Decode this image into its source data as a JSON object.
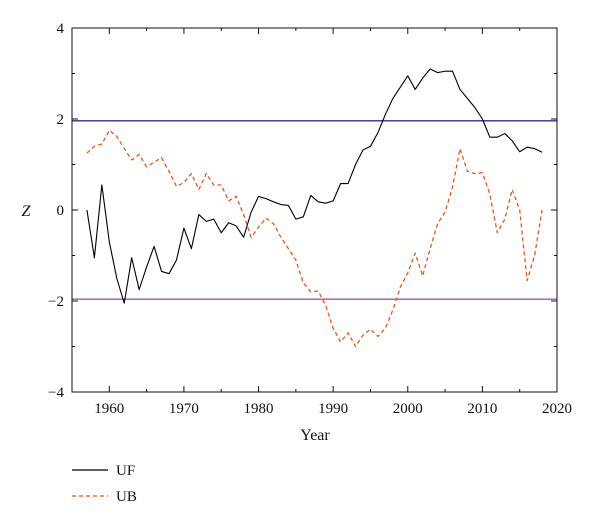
{
  "chart_data": {
    "type": "line",
    "xlabel": "Year",
    "ylabel": "Z",
    "xlim": [
      1955,
      2020
    ],
    "ylim": [
      -4,
      4
    ],
    "xticks": [
      1960,
      1970,
      1980,
      1990,
      2000,
      2010,
      2020
    ],
    "yticks": [
      -4,
      -2,
      0,
      2,
      4
    ],
    "grid": false,
    "legend_position": "below-left",
    "reference_lines": [
      {
        "y": 1.96,
        "color": "#2d2d86"
      },
      {
        "y": -1.96,
        "color": "#9b59b6"
      }
    ],
    "series": [
      {
        "name": "UF",
        "color": "#000000",
        "style": "solid",
        "x": [
          1957,
          1958,
          1959,
          1960,
          1961,
          1962,
          1963,
          1964,
          1965,
          1966,
          1967,
          1968,
          1969,
          1970,
          1971,
          1972,
          1973,
          1974,
          1975,
          1976,
          1977,
          1978,
          1979,
          1980,
          1981,
          1982,
          1983,
          1984,
          1985,
          1986,
          1987,
          1988,
          1989,
          1990,
          1991,
          1992,
          1993,
          1994,
          1995,
          1996,
          1997,
          1998,
          1999,
          2000,
          2001,
          2002,
          2003,
          2004,
          2005,
          2006,
          2007,
          2008,
          2009,
          2010,
          2011,
          2012,
          2013,
          2014,
          2015,
          2016,
          2017,
          2018
        ],
        "y": [
          0.0,
          -1.05,
          0.55,
          -0.7,
          -1.5,
          -2.05,
          -1.05,
          -1.75,
          -1.25,
          -0.8,
          -1.35,
          -1.4,
          -1.1,
          -0.4,
          -0.85,
          -0.1,
          -0.25,
          -0.2,
          -0.5,
          -0.28,
          -0.35,
          -0.6,
          -0.05,
          0.3,
          0.25,
          0.18,
          0.12,
          0.1,
          -0.2,
          -0.15,
          0.32,
          0.18,
          0.15,
          0.2,
          0.58,
          0.58,
          1.0,
          1.32,
          1.4,
          1.7,
          2.1,
          2.45,
          2.7,
          2.95,
          2.65,
          2.9,
          3.1,
          3.02,
          3.05,
          3.05,
          2.65,
          2.45,
          2.25,
          2.0,
          1.6,
          1.6,
          1.68,
          1.52,
          1.28,
          1.38,
          1.35,
          1.27
        ]
      },
      {
        "name": "UB",
        "color": "#e8541a",
        "style": "dashed",
        "x": [
          1957,
          1958,
          1959,
          1960,
          1961,
          1962,
          1963,
          1964,
          1965,
          1966,
          1967,
          1968,
          1969,
          1970,
          1971,
          1972,
          1973,
          1974,
          1975,
          1976,
          1977,
          1978,
          1979,
          1980,
          1981,
          1982,
          1983,
          1984,
          1985,
          1986,
          1987,
          1988,
          1989,
          1990,
          1991,
          1992,
          1993,
          1994,
          1995,
          1996,
          1997,
          1998,
          1999,
          2000,
          2001,
          2002,
          2003,
          2004,
          2005,
          2006,
          2007,
          2008,
          2009,
          2010,
          2011,
          2012,
          2013,
          2014,
          2015,
          2016,
          2017,
          2018
        ],
        "y": [
          1.25,
          1.4,
          1.45,
          1.75,
          1.62,
          1.35,
          1.1,
          1.22,
          0.95,
          1.05,
          1.15,
          0.85,
          0.52,
          0.6,
          0.8,
          0.45,
          0.8,
          0.55,
          0.55,
          0.2,
          0.3,
          -0.1,
          -0.6,
          -0.38,
          -0.18,
          -0.3,
          -0.6,
          -0.85,
          -1.1,
          -1.6,
          -1.8,
          -1.78,
          -2.1,
          -2.6,
          -2.9,
          -2.7,
          -3.0,
          -2.75,
          -2.62,
          -2.78,
          -2.6,
          -2.2,
          -1.7,
          -1.38,
          -0.95,
          -1.45,
          -0.85,
          -0.3,
          -0.05,
          0.5,
          1.35,
          0.85,
          0.8,
          0.82,
          0.35,
          -0.5,
          -0.2,
          0.45,
          0.0,
          -1.55,
          -1.0,
          0.0
        ]
      }
    ]
  }
}
